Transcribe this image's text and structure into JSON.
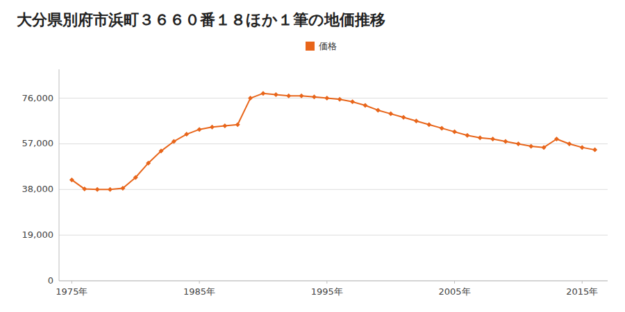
{
  "chart_data": {
    "type": "line",
    "title": "大分県別府市浜町３６６０番１８ほか１筆の地価推移",
    "x": [
      1975,
      1976,
      1977,
      1978,
      1979,
      1980,
      1981,
      1982,
      1983,
      1984,
      1985,
      1986,
      1987,
      1988,
      1989,
      1990,
      1991,
      1992,
      1993,
      1994,
      1995,
      1996,
      1997,
      1998,
      1999,
      2000,
      2001,
      2002,
      2003,
      2004,
      2005,
      2006,
      2007,
      2008,
      2009,
      2010,
      2011,
      2012,
      2013,
      2014,
      2015,
      2016
    ],
    "series": [
      {
        "name": "価格",
        "color": "#e8651a",
        "marker": "diamond",
        "values": [
          42000,
          38200,
          38000,
          38000,
          38500,
          43000,
          49000,
          54000,
          58000,
          61000,
          63000,
          64000,
          64500,
          65000,
          76000,
          78000,
          77500,
          77000,
          77000,
          76500,
          76000,
          75500,
          74500,
          73000,
          71000,
          69500,
          68000,
          66500,
          65000,
          63500,
          62000,
          60500,
          59500,
          59000,
          58000,
          57000,
          56000,
          55500,
          59000,
          57000,
          55500,
          54500
        ]
      }
    ],
    "xlim": [
      1974,
      2017
    ],
    "xticks": [
      {
        "value": 1975,
        "label": "1975年"
      },
      {
        "value": 1985,
        "label": "1985年"
      },
      {
        "value": 1995,
        "label": "1995年"
      },
      {
        "value": 2005,
        "label": "2005年"
      },
      {
        "value": 2015,
        "label": "2015年"
      }
    ],
    "ylim": [
      0,
      88000
    ],
    "yticks": [
      0,
      {
        "value": 19000,
        "label": "19,000"
      },
      {
        "value": 38000,
        "label": "38,000"
      },
      {
        "value": 57000,
        "label": "57,000"
      },
      {
        "value": 76000,
        "label": "76,000"
      }
    ],
    "grid": true,
    "legend": "top"
  }
}
